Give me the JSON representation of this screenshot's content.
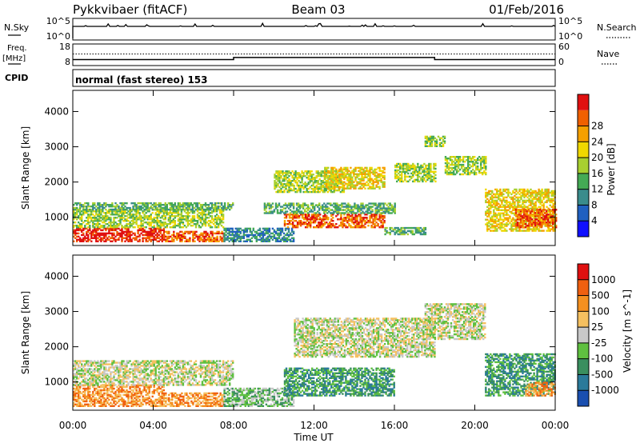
{
  "header": {
    "radar": "Pykkvibaer (fitACF)",
    "beam": "Beam 03",
    "date": "01/Feb/2016"
  },
  "nsky_panel": {
    "left_label": "N.Sky",
    "right_label": "N.Search",
    "left_ticks": [
      "10^5",
      "10^0"
    ],
    "right_ticks": [
      "10^5",
      "10^0"
    ]
  },
  "freq_panel": {
    "left_label_1": "Freq.",
    "left_label_2": "[MHz]",
    "right_label": "Nave",
    "left_ticks": [
      "18",
      "8"
    ],
    "right_ticks": [
      "60",
      "0"
    ],
    "steps": [
      [
        0,
        10.5
      ],
      [
        8.0,
        10.5
      ],
      [
        8.0,
        11.5
      ],
      [
        18.0,
        11.5
      ],
      [
        18.0,
        10.5
      ],
      [
        24,
        10.5
      ]
    ],
    "nave_level": 13.2
  },
  "cpid": {
    "label": "CPID",
    "text": "normal (fast stereo) 153"
  },
  "time_axis": {
    "label": "Time UT",
    "ticks": [
      "00:00",
      "04:00",
      "08:00",
      "12:00",
      "16:00",
      "20:00",
      "00:00"
    ],
    "values": [
      0,
      4,
      8,
      12,
      16,
      20,
      24
    ]
  },
  "range_axis": {
    "label": "Slant Range [km]",
    "ticks": [
      "1000",
      "2000",
      "3000",
      "4000"
    ],
    "values": [
      1000,
      2000,
      3000,
      4000
    ],
    "ylim": [
      200,
      4600
    ]
  },
  "power_colorbar": {
    "label": "Power [dB]",
    "ticks": [
      "4",
      "8",
      "12",
      "16",
      "20",
      "24",
      "28"
    ],
    "colors": [
      "#1010ff",
      "#2060c0",
      "#3a8c8c",
      "#44aa55",
      "#a8d030",
      "#f0d800",
      "#f5a000",
      "#f06000",
      "#e01010"
    ]
  },
  "velocity_colorbar": {
    "label": "Velocity [m s^-1]",
    "ticks": [
      "1000",
      "500",
      "100",
      "25",
      "-25",
      "-100",
      "-500",
      "-1000"
    ],
    "colors": [
      "#1a4fb0",
      "#2a7a9a",
      "#3a8f5f",
      "#5fc040",
      "#c8c8c8",
      "#f5c060",
      "#f59020",
      "#f06010",
      "#e01010"
    ]
  },
  "chart_data": [
    {
      "type": "heatmap",
      "name": "Power",
      "xlabel": "Time UT",
      "ylabel": "Slant Range [km]",
      "xlim": [
        0,
        24
      ],
      "ylim": [
        200,
        4600
      ],
      "regions": [
        {
          "t0": 0.0,
          "t1": 4.5,
          "r0": 300,
          "r1": 700,
          "level": 8
        },
        {
          "t0": 0.0,
          "t1": 7.5,
          "r0": 700,
          "r1": 1200,
          "level": 4
        },
        {
          "t0": 0.0,
          "t1": 8.0,
          "r0": 1200,
          "r1": 1400,
          "level": 3
        },
        {
          "t0": 4.5,
          "t1": 7.5,
          "r0": 300,
          "r1": 600,
          "level": 7
        },
        {
          "t0": 7.5,
          "t1": 11.0,
          "r0": 300,
          "r1": 700,
          "level": 2
        },
        {
          "t0": 10.5,
          "t1": 15.5,
          "r0": 700,
          "r1": 1100,
          "level": 7
        },
        {
          "t0": 9.5,
          "t1": 16.0,
          "r0": 1100,
          "r1": 1400,
          "level": 3
        },
        {
          "t0": 10.0,
          "t1": 13.5,
          "r0": 1700,
          "r1": 2300,
          "level": 4
        },
        {
          "t0": 12.5,
          "t1": 15.5,
          "r0": 1800,
          "r1": 2400,
          "level": 5
        },
        {
          "t0": 16.0,
          "t1": 18.0,
          "r0": 2000,
          "r1": 2500,
          "level": 4
        },
        {
          "t0": 18.5,
          "t1": 20.5,
          "r0": 2200,
          "r1": 2700,
          "level": 4
        },
        {
          "t0": 15.5,
          "t1": 17.5,
          "r0": 500,
          "r1": 700,
          "level": 3
        },
        {
          "t0": 17.5,
          "t1": 18.5,
          "r0": 3000,
          "r1": 3300,
          "level": 4
        },
        {
          "t0": 20.5,
          "t1": 24.0,
          "r0": 600,
          "r1": 1800,
          "level": 5
        },
        {
          "t0": 22.0,
          "t1": 24.0,
          "r0": 700,
          "r1": 1200,
          "level": 7
        }
      ]
    },
    {
      "type": "heatmap",
      "name": "Velocity",
      "xlabel": "Time UT",
      "ylabel": "Slant Range [km]",
      "xlim": [
        0,
        24
      ],
      "ylim": [
        200,
        4600
      ],
      "regions": [
        {
          "t0": 0.0,
          "t1": 4.5,
          "r0": 300,
          "r1": 900,
          "level": 6
        },
        {
          "t0": 0.0,
          "t1": 8.0,
          "r0": 900,
          "r1": 1600,
          "level": 4
        },
        {
          "t0": 4.5,
          "t1": 7.5,
          "r0": 300,
          "r1": 700,
          "level": 6
        },
        {
          "t0": 7.5,
          "t1": 11.0,
          "r0": 300,
          "r1": 800,
          "level": 3
        },
        {
          "t0": 10.5,
          "t1": 16.0,
          "r0": 600,
          "r1": 1400,
          "level": 2
        },
        {
          "t0": 11.0,
          "t1": 18.0,
          "r0": 1700,
          "r1": 2800,
          "level": 4
        },
        {
          "t0": 17.5,
          "t1": 20.5,
          "r0": 2200,
          "r1": 3200,
          "level": 4
        },
        {
          "t0": 20.5,
          "t1": 24.0,
          "r0": 600,
          "r1": 1800,
          "level": 2
        },
        {
          "t0": 22.5,
          "t1": 24.0,
          "r0": 600,
          "r1": 1000,
          "level": 6
        }
      ]
    }
  ]
}
